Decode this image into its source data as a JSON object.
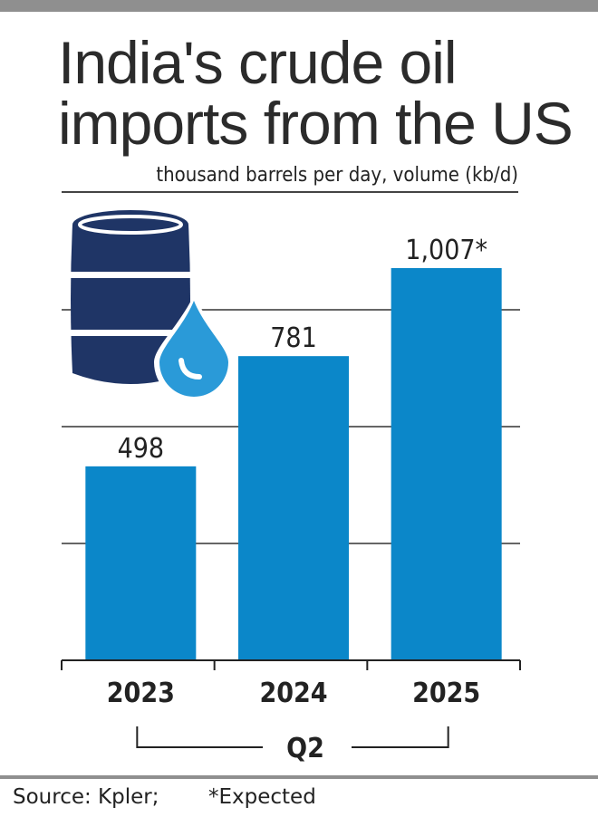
{
  "title_line_1": "India's crude oil",
  "title_line_2": "imports from the US",
  "subtitle": "thousand barrels per day, volume (kb/d)",
  "period_label": "Q2",
  "source": "Source: Kpler;",
  "note": "*Expected",
  "colors": {
    "bar": "#0b87c9",
    "barrel": "#1f3566",
    "drop": "#2a9ad8",
    "grid": "#333333"
  },
  "icons": [
    "oil-barrel-icon",
    "oil-drop-icon"
  ],
  "chart_data": {
    "type": "bar",
    "title": "India's crude oil imports from the US",
    "ylabel": "thousand barrels per day, volume (kb/d)",
    "categories": [
      "2023",
      "2024",
      "2025"
    ],
    "values": [
      498,
      781,
      1007
    ],
    "value_labels": [
      "498",
      "781",
      "1,007*"
    ],
    "ylim": [
      0,
      1200
    ],
    "gridlines": [
      300,
      600,
      900
    ],
    "grid": true,
    "legend": "none"
  }
}
